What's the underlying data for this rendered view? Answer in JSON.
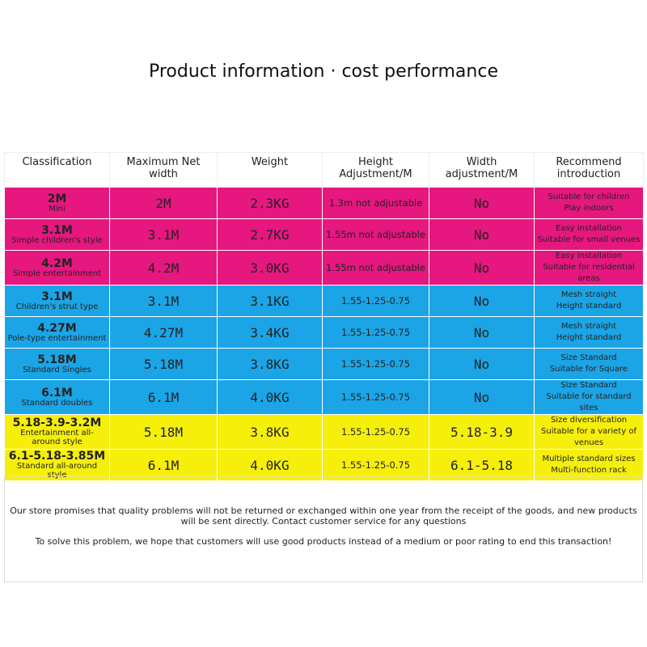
{
  "title": "Product information · cost performance",
  "table": {
    "header": [
      "Classification",
      "Maximum Net width",
      "Weight",
      "Height Adjustment/M",
      "Width adjustment/M",
      "Recommend introduction"
    ],
    "groups": [
      {
        "color": "#e6177f",
        "rows": [
          {
            "size": "2M",
            "style": "Mini",
            "width": "2M",
            "weight": "2.3KG",
            "height": "1.3m not adjustable",
            "width_adj": "No",
            "intro": [
              "Suitable for children",
              "Play indoors"
            ]
          },
          {
            "size": "3.1M",
            "style": "Simple children's style",
            "width": "3.1M",
            "weight": "2.7KG",
            "height": "1.55m not adjustable",
            "width_adj": "No",
            "intro": [
              "Easy installation",
              "Suitable for small venues"
            ]
          },
          {
            "size": "4.2M",
            "style": "Simple entertainment",
            "width": "4.2M",
            "weight": "3.0KG",
            "height": "1.55m not adjustable",
            "width_adj": "No",
            "intro": [
              "Easy Installation",
              "Suitable for residential areas"
            ]
          }
        ]
      },
      {
        "color": "#1ba5e6",
        "rows": [
          {
            "size": "3.1M",
            "style": "Children's strut type",
            "width": "3.1M",
            "weight": "3.1KG",
            "height": "1.55-1.25-0.75",
            "width_adj": "No",
            "intro": [
              "Mesh straight",
              "Height standard"
            ]
          },
          {
            "size": "4.27M",
            "style": "Pole-type entertainment",
            "width": "4.27M",
            "weight": "3.4KG",
            "height": "1.55-1.25-0.75",
            "width_adj": "No",
            "intro": [
              "Mesh straight",
              "Height standard"
            ]
          },
          {
            "size": "5.18M",
            "style": "Standard Singles",
            "width": "5.18M",
            "weight": "3.8KG",
            "height": "1.55-1.25-0.75",
            "width_adj": "No",
            "intro": [
              "Size Standard",
              "Suitable for Square"
            ]
          },
          {
            "size": "6.1M",
            "style": "Standard doubles",
            "width": "6.1M",
            "weight": "4.0KG",
            "height": "1.55-1.25-0.75",
            "width_adj": "No",
            "intro": [
              "Size Standard",
              "Suitable for standard sites"
            ]
          }
        ]
      },
      {
        "color": "#f6ef0c",
        "rows": [
          {
            "size": "5.18-3.9-3.2M",
            "style": "Entertainment all-around style",
            "width": "5.18M",
            "weight": "3.8KG",
            "height": "1.55-1.25-0.75",
            "width_adj": "5.18-3.9",
            "intro": [
              "Size diversification",
              "Suitable for a variety of venues"
            ]
          },
          {
            "size": "6.1-5.18-3.85M",
            "style": "Standard all-around style",
            "width": "6.1M",
            "weight": "4.0KG",
            "height": "1.55-1.25-0.75",
            "width_adj": "6.1-5.18",
            "intro": [
              "Multiple standard sizes",
              "Multi-function rack"
            ]
          }
        ]
      }
    ]
  },
  "notes": [
    "Our store promises that quality problems will not be returned or exchanged within one year from the receipt of the goods, and new products will be sent directly. Contact customer service for any questions",
    "To solve this problem, we hope that customers will use good products instead of a medium or poor rating to end this transaction!"
  ]
}
